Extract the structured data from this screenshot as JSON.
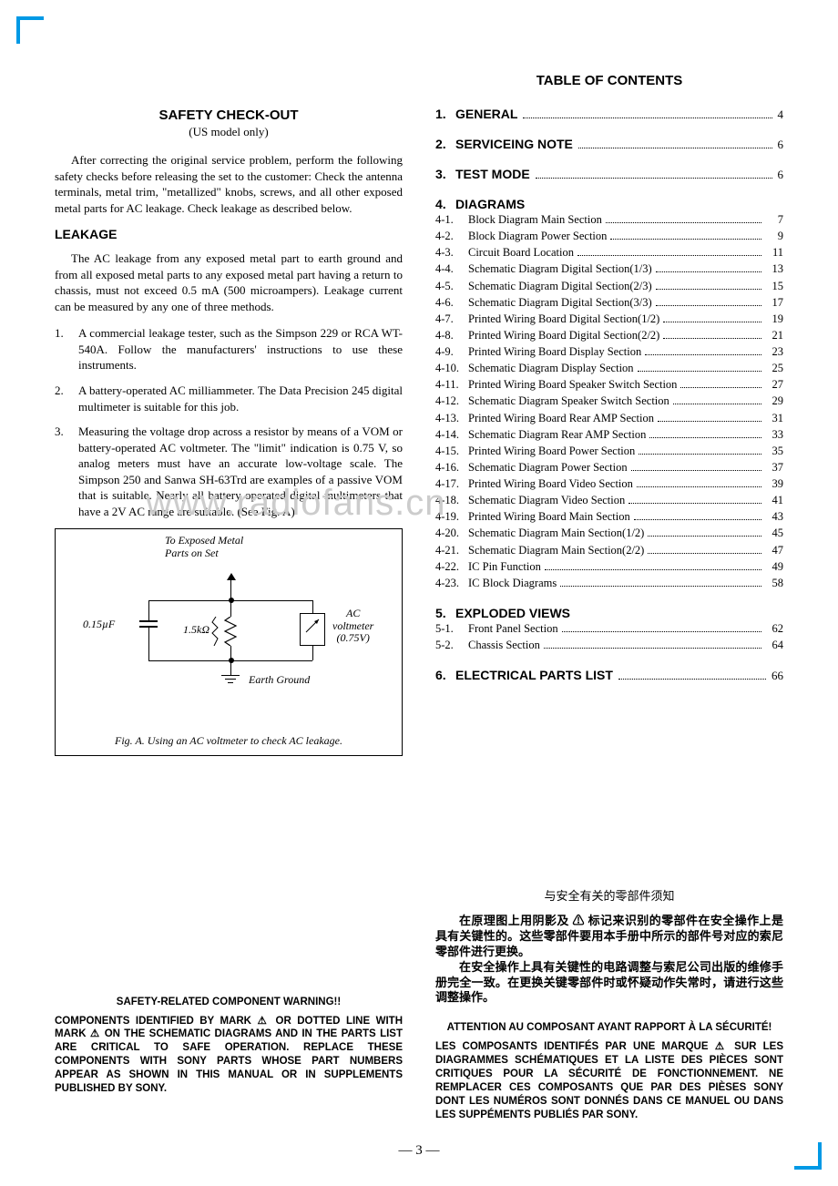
{
  "watermark": "www.radiofans.cn",
  "left": {
    "safety_title": "SAFETY  CHECK-OUT",
    "safety_subtitle": "(US model only)",
    "intro": "After correcting the original service problem, perform the following safety checks before releasing the set to the customer: Check the antenna terminals, metal trim, \"metallized\" knobs, screws, and all other exposed metal parts for AC leakage. Check leakage as described below.",
    "leakage_heading": "LEAKAGE",
    "leakage_para": "The AC leakage from any exposed metal part to earth ground and from all exposed metal parts to any exposed metal part having a return to chassis, must not exceed 0.5 mA (500 microampers). Leakage current can be measured by any one of three methods.",
    "methods": [
      {
        "n": "1.",
        "t": "A commercial leakage tester, such as the Simpson 229 or RCA WT-540A. Follow the manufacturers' instructions to use these instruments."
      },
      {
        "n": "2.",
        "t": "A battery-operated AC milliammeter. The Data Precision 245 digital multimeter is suitable for this job."
      },
      {
        "n": "3.",
        "t": "Measuring the voltage drop across a resistor by means of a VOM or battery-operated AC voltmeter. The \"limit\" indication is 0.75 V, so analog meters must have an accurate low-voltage scale. The Simpson 250 and Sanwa SH-63Trd are examples of a passive VOM that is suitable. Nearly all battery operated digital multimeters that have a 2V AC range are suitable. (See Fig. A)"
      }
    ],
    "fig": {
      "top_label1": "To Exposed Metal",
      "top_label2": "Parts on Set",
      "cap_label": "0.15µF",
      "res_label": "1.5kΩ",
      "volt_label1": "AC",
      "volt_label2": "voltmeter",
      "volt_label3": "(0.75V)",
      "ground_label": "Earth Ground",
      "caption": "Fig. A.  Using an AC voltmeter to check AC leakage."
    }
  },
  "toc": {
    "title": "TABLE OF CONTENTS",
    "sections": [
      {
        "num": "1.",
        "name": "GENERAL",
        "page": "4"
      },
      {
        "num": "2.",
        "name": "SERVICEING NOTE",
        "page": "6"
      },
      {
        "num": "3.",
        "name": "TEST MODE",
        "page": "6"
      }
    ],
    "diagrams_sec": {
      "num": "4.",
      "name": "DIAGRAMS"
    },
    "diagrams": [
      {
        "n": "4-1.",
        "t": "Block Diagram   Main Section",
        "p": "7"
      },
      {
        "n": "4-2.",
        "t": "Block Diagram   Power Section",
        "p": "9"
      },
      {
        "n": "4-3.",
        "t": "Circuit Board Location",
        "p": "11"
      },
      {
        "n": "4-4.",
        "t": "Schematic Diagram   Digital Section(1/3)",
        "p": "13"
      },
      {
        "n": "4-5.",
        "t": "Schematic Diagram   Digital Section(2/3)",
        "p": "15"
      },
      {
        "n": "4-6.",
        "t": "Schematic Diagram   Digital Section(3/3)",
        "p": "17"
      },
      {
        "n": "4-7.",
        "t": "Printed Wiring Board   Digital Section(1/2)",
        "p": "19"
      },
      {
        "n": "4-8.",
        "t": "Printed Wiring Board   Digital Section(2/2)",
        "p": "21"
      },
      {
        "n": "4-9.",
        "t": "Printed Wiring Board   Display Section",
        "p": "23"
      },
      {
        "n": "4-10.",
        "t": "Schematic Diagram   Display Section",
        "p": "25"
      },
      {
        "n": "4-11.",
        "t": "Printed Wiring Board   Speaker Switch Section",
        "p": "27"
      },
      {
        "n": "4-12.",
        "t": "Schematic Diagram   Speaker Switch Section",
        "p": "29"
      },
      {
        "n": "4-13.",
        "t": "Printed Wiring Board   Rear AMP Section",
        "p": "31"
      },
      {
        "n": "4-14.",
        "t": "Schematic Diagram   Rear AMP Section",
        "p": "33"
      },
      {
        "n": "4-15.",
        "t": "Printed Wiring Board   Power Section",
        "p": "35"
      },
      {
        "n": "4-16.",
        "t": "Schematic Diagram   Power Section",
        "p": "37"
      },
      {
        "n": "4-17.",
        "t": "Printed Wiring Board   Video Section",
        "p": "39"
      },
      {
        "n": "4-18.",
        "t": "Schematic Diagram   Video Section",
        "p": "41"
      },
      {
        "n": "4-19.",
        "t": "Printed Wiring Board   Main Section",
        "p": "43"
      },
      {
        "n": "4-20.",
        "t": "Schematic Diagram   Main Section(1/2)",
        "p": "45"
      },
      {
        "n": "4-21.",
        "t": "Schematic Diagram   Main Section(2/2)",
        "p": "47"
      },
      {
        "n": "4-22.",
        "t": "IC Pin Function",
        "p": "49"
      },
      {
        "n": "4-23.",
        "t": "IC Block Diagrams",
        "p": "58"
      }
    ],
    "exploded_sec": {
      "num": "5.",
      "name": "EXPLODED VIEWS"
    },
    "exploded": [
      {
        "n": "5-1.",
        "t": "Front Panel Section",
        "p": "62"
      },
      {
        "n": "5-2.",
        "t": "Chassis Section",
        "p": "64"
      }
    ],
    "parts_sec": {
      "num": "6.",
      "name": "ELECTRICAL PARTS LIST",
      "page": "66"
    }
  },
  "bottom": {
    "chinese": {
      "title": "与安全有关的零部件须知",
      "p1": "在原理图上用阴影及 ⚠ 标记来识别的零部件在安全操作上是具有关键性的。这些零部件要用本手册中所示的部件号对应的索尼零部件进行更换。",
      "p2": "在安全操作上具有关键性的电路调整与索尼公司出版的维修手册完全一致。在更换关键零部件时或怀疑动作失常时，请进行这些调整操作。"
    },
    "english": {
      "heading": "SAFETY-RELATED COMPONENT WARNING!!",
      "body": "COMPONENTS IDENTIFIED BY MARK ⚠ OR DOTTED LINE WITH MARK ⚠ ON THE SCHEMATIC DIAGRAMS AND IN THE PARTS LIST ARE CRITICAL TO SAFE OPERATION. REPLACE THESE COMPONENTS WITH SONY PARTS WHOSE PART NUMBERS APPEAR AS SHOWN IN THIS MANUAL OR IN SUPPLEMENTS PUBLISHED BY SONY."
    },
    "french": {
      "heading": "ATTENTION AU COMPOSANT AYANT RAPPORT À LA SÉCURITÉ!",
      "body": "LES COMPOSANTS IDENTIFÉS PAR UNE MARQUE ⚠ SUR LES DIAGRAMMES SCHÉMATIQUES ET LA LISTE DES PIÈCES SONT CRITIQUES POUR LA SÉCURITÉ DE FONCTIONNEMENT. NE REMPLACER CES COMPOSANTS QUE PAR DES PIÈSES SONY DONT LES NUMÉROS SONT DONNÉS DANS CE MANUEL OU DANS LES SUPPÉMENTS PUBLIÉS PAR SONY."
    }
  },
  "page_number": "— 3 —"
}
